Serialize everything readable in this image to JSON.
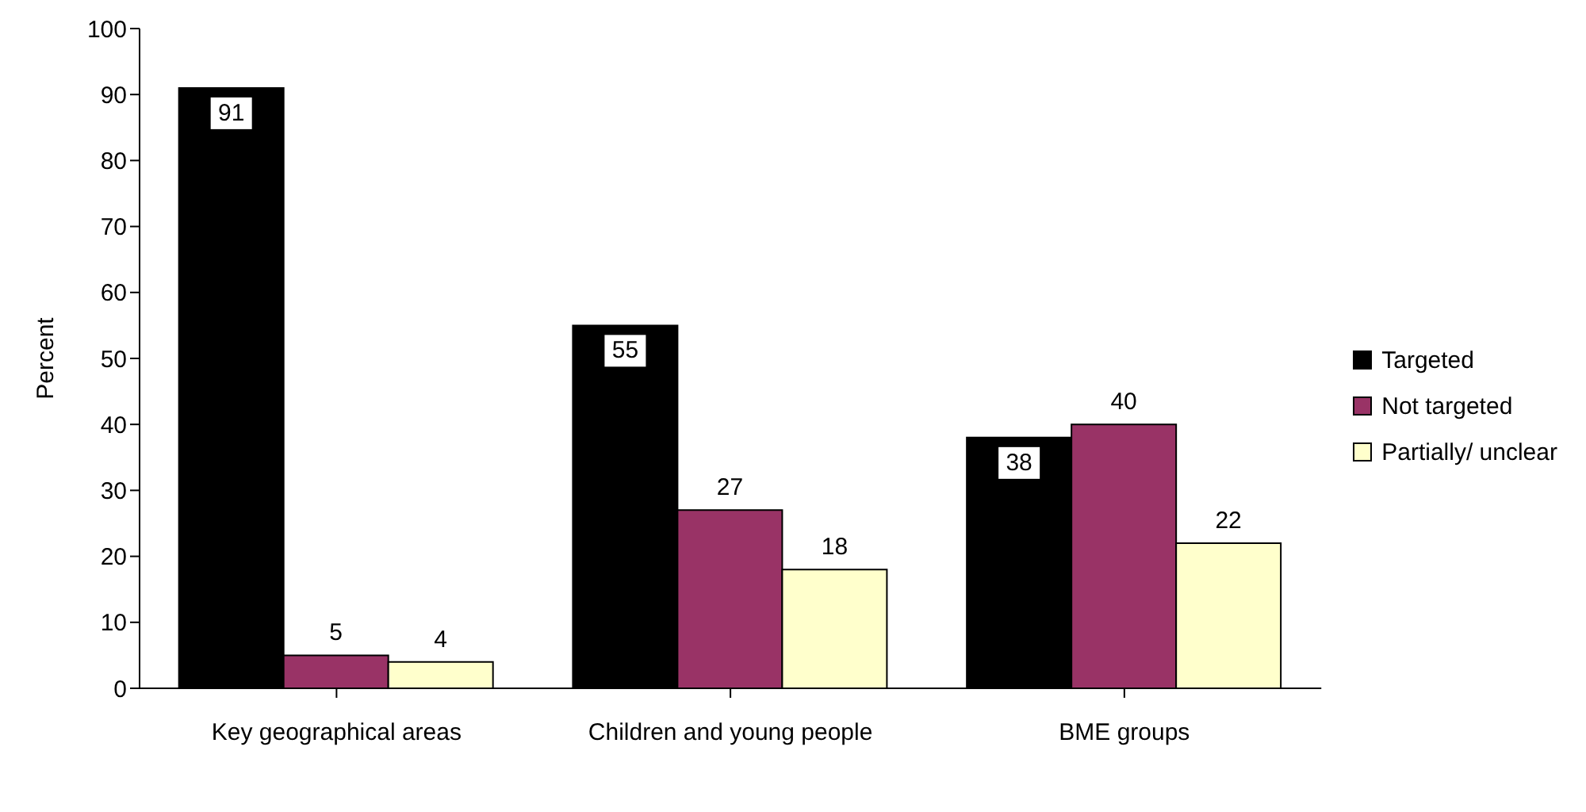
{
  "chart_data": {
    "type": "bar",
    "ylabel": "Percent",
    "categories": [
      "Key geographical areas",
      "Children and young people",
      "BME groups"
    ],
    "series": [
      {
        "name": "Targeted",
        "color": "#000000",
        "values": [
          91,
          55,
          38
        ]
      },
      {
        "name": "Not targeted",
        "color": "#993366",
        "values": [
          5,
          27,
          40
        ]
      },
      {
        "name": "Partially/ unclear",
        "color": "#ffffcc",
        "values": [
          4,
          18,
          22
        ]
      }
    ],
    "ylim": [
      0,
      100
    ],
    "yticks": [
      0,
      10,
      20,
      30,
      40,
      50,
      60,
      70,
      80,
      90,
      100
    ],
    "grid": false,
    "legend": "right",
    "data_labels": true
  }
}
